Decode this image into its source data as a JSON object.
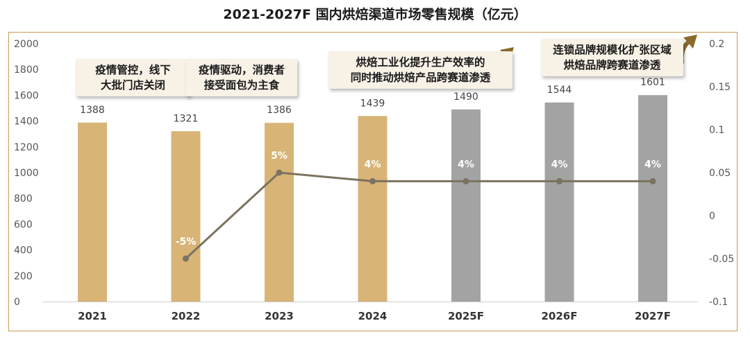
{
  "title": "2021-2027F 国内烘焙渠道市场零售规模（亿元）",
  "chart_data": {
    "type": "bar",
    "categories": [
      "2021",
      "2022",
      "2023",
      "2024",
      "2025F",
      "2026F",
      "2027F"
    ],
    "series": [
      {
        "values": [
          1388,
          1321,
          1386,
          1439,
          1490,
          1544,
          1601
        ],
        "colors": [
          "#d8b476",
          "#d8b476",
          "#d8b476",
          "#d8b476",
          "#a3a3a3",
          "#a3a3a3",
          "#a3a3a3"
        ]
      }
    ],
    "growth_line": {
      "type": "line",
      "x": [
        "2022",
        "2023",
        "2024",
        "2025F",
        "2026F",
        "2027F"
      ],
      "values": [
        -0.05,
        0.05,
        0.04,
        0.04,
        0.04,
        0.04
      ],
      "labels": [
        "-5%",
        "5%",
        "4%",
        "4%",
        "4%",
        "4%"
      ],
      "color": "#7a735f"
    },
    "ylim": [
      0,
      2000
    ],
    "y_ticks": [
      "2000",
      "1800",
      "1600",
      "1400",
      "1200",
      "1000",
      "800",
      "600",
      "400",
      "200",
      "0"
    ],
    "y2lim": [
      -0.1,
      0.2
    ],
    "y2_ticks": [
      "0.2",
      "0.15",
      "0.1",
      "0.05",
      "0",
      "-0.05",
      "-0.1"
    ],
    "grid": false
  },
  "annotations": [
    {
      "lines": [
        "疫情管控，线下",
        "大批门店关闭"
      ]
    },
    {
      "lines": [
        "疫情驱动，消费者",
        "接受面包为主食"
      ]
    },
    {
      "lines": [
        "烘焙工业化提升生产效率的",
        "同时推动烘焙产品跨赛道渗透"
      ]
    },
    {
      "lines": [
        "连锁品牌规模化扩张区域",
        "烘焙品牌跨赛道渗透"
      ]
    }
  ],
  "colors": {
    "actual_bar": "#d8b476",
    "forecast_bar": "#a3a3a3",
    "line": "#7a735f",
    "frame": "#c79a55",
    "arrow": "#8a6a2a"
  }
}
